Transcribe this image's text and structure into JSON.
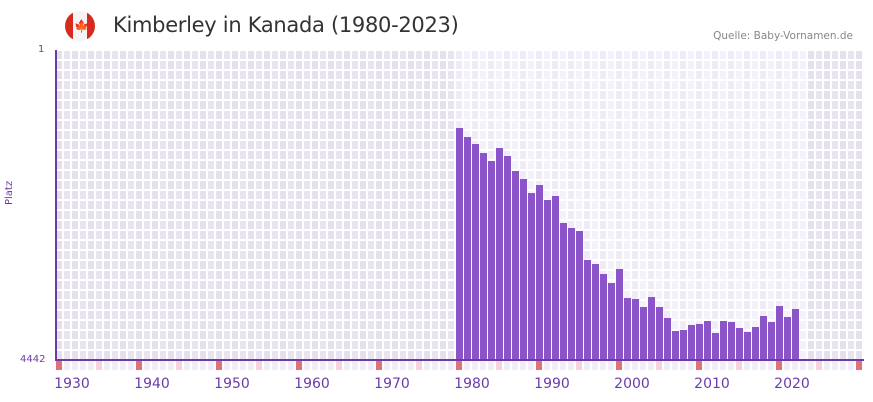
{
  "header": {
    "title": "Kimberley in Kanada (1980-2023)",
    "source": "Quelle: Baby-Vornamen.de",
    "flag_icon": "canada-flag-icon",
    "flag_leaf": "🍁"
  },
  "colors": {
    "bar": "#8b55c9",
    "axis": "#6a3ca8",
    "bg_out": "#e4e0ee",
    "bg_in": "#efecf8",
    "decade_marker": "#e36f7a",
    "half_decade_marker": "#f5d5dd",
    "year_marker": "#f0eef8"
  },
  "chart_data": {
    "type": "bar",
    "title": "Kimberley in Kanada (1980-2023)",
    "xlabel": "",
    "ylabel": "Platz",
    "y_inverted": true,
    "ylim": [
      4442,
      1
    ],
    "y_ticks": [
      "1",
      "4442"
    ],
    "x_range": [
      1930,
      2030
    ],
    "x_ticks": [
      "1930",
      "1940",
      "1950",
      "1960",
      "1970",
      "1980",
      "1990",
      "2000",
      "2010",
      "2020"
    ],
    "data_range": [
      1980,
      2023
    ],
    "grid": true,
    "legend": "none",
    "categories": [
      1980,
      1981,
      1982,
      1983,
      1984,
      1985,
      1986,
      1987,
      1988,
      1989,
      1990,
      1991,
      1992,
      1993,
      1994,
      1995,
      1996,
      1997,
      1998,
      1999,
      2000,
      2001,
      2002,
      2003,
      2004,
      2005,
      2006,
      2007,
      2008,
      2009,
      2010,
      2011,
      2012,
      2013,
      2014,
      2015,
      2016,
      2017,
      2018,
      2019,
      2020,
      2021,
      2022
    ],
    "values": [
      1118,
      1247,
      1348,
      1477,
      1591,
      1405,
      1520,
      1734,
      1849,
      2050,
      1935,
      2150,
      2093,
      2479,
      2551,
      2594,
      3010,
      3067,
      3210,
      3339,
      3138,
      3554,
      3568,
      3683,
      3540,
      3683,
      3840,
      4027,
      4012,
      3941,
      3926,
      3883,
      4055,
      3883,
      3898,
      3984,
      4041,
      3969,
      3811,
      3898,
      3668,
      3826,
      3711
    ]
  }
}
